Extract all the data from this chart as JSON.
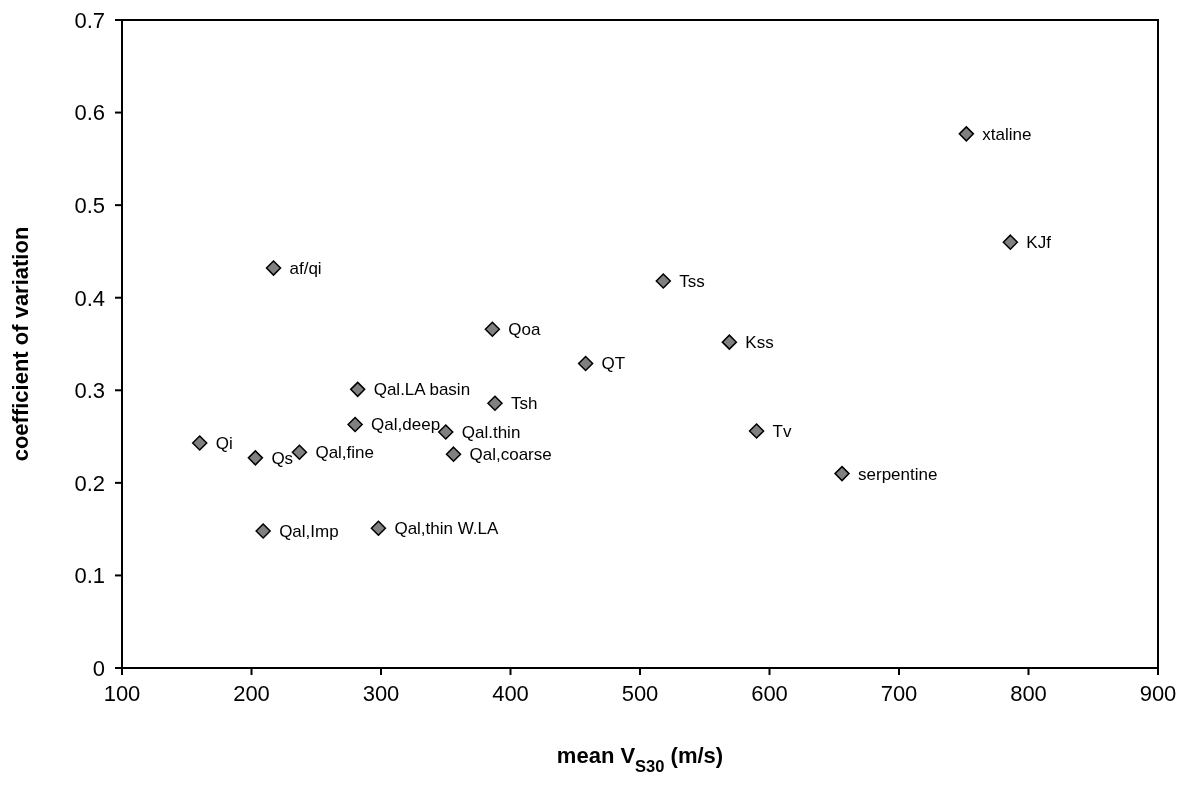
{
  "chart_data": {
    "type": "scatter",
    "xlabel": "mean V$_{S30}$ (m/s)",
    "ylabel": "coefficient of variation",
    "x": [
      160,
      203,
      237,
      217,
      209,
      282,
      280,
      298,
      386,
      458,
      388,
      350,
      356,
      518,
      569,
      590,
      656,
      752,
      786
    ],
    "values": [
      0.243,
      0.227,
      0.233,
      0.432,
      0.148,
      0.301,
      0.263,
      0.151,
      0.366,
      0.329,
      0.286,
      0.255,
      0.231,
      0.418,
      0.352,
      0.256,
      0.21,
      0.577,
      0.46
    ],
    "color": "#808080",
    "marker": "diamond",
    "xlim": [
      100,
      900
    ],
    "ylim": [
      0,
      0.7
    ],
    "xticks": [
      100,
      200,
      300,
      400,
      500,
      600,
      700,
      800,
      900
    ],
    "yticks": [
      0,
      0.1,
      0.2,
      0.3,
      0.4,
      0.5,
      0.6,
      0.7
    ],
    "grid": false,
    "legend": false,
    "annotations": [
      {
        "text": "Qi",
        "x": 160,
        "y": 0.243
      },
      {
        "text": "Qs",
        "x": 203,
        "y": 0.227
      },
      {
        "text": "Qal,fine",
        "x": 237,
        "y": 0.233
      },
      {
        "text": "af/qi",
        "x": 217,
        "y": 0.432
      },
      {
        "text": "Qal,Imp",
        "x": 209,
        "y": 0.148
      },
      {
        "text": "Qal.LA basin",
        "x": 282,
        "y": 0.301
      },
      {
        "text": "Qal,deep",
        "x": 280,
        "y": 0.263
      },
      {
        "text": "Qal,thin W.LA",
        "x": 298,
        "y": 0.151
      },
      {
        "text": "Qoa",
        "x": 386,
        "y": 0.366
      },
      {
        "text": "QT",
        "x": 458,
        "y": 0.329
      },
      {
        "text": "Tsh",
        "x": 388,
        "y": 0.286
      },
      {
        "text": "Qal.thin",
        "x": 350,
        "y": 0.255
      },
      {
        "text": "Qal,coarse",
        "x": 356,
        "y": 0.231
      },
      {
        "text": "Tss",
        "x": 518,
        "y": 0.418
      },
      {
        "text": "Kss",
        "x": 569,
        "y": 0.352
      },
      {
        "text": "Tv",
        "x": 590,
        "y": 0.256
      },
      {
        "text": "serpentine",
        "x": 656,
        "y": 0.21
      },
      {
        "text": "xtaline",
        "x": 752,
        "y": 0.577
      },
      {
        "text": "KJf",
        "x": 786,
        "y": 0.46
      }
    ]
  }
}
